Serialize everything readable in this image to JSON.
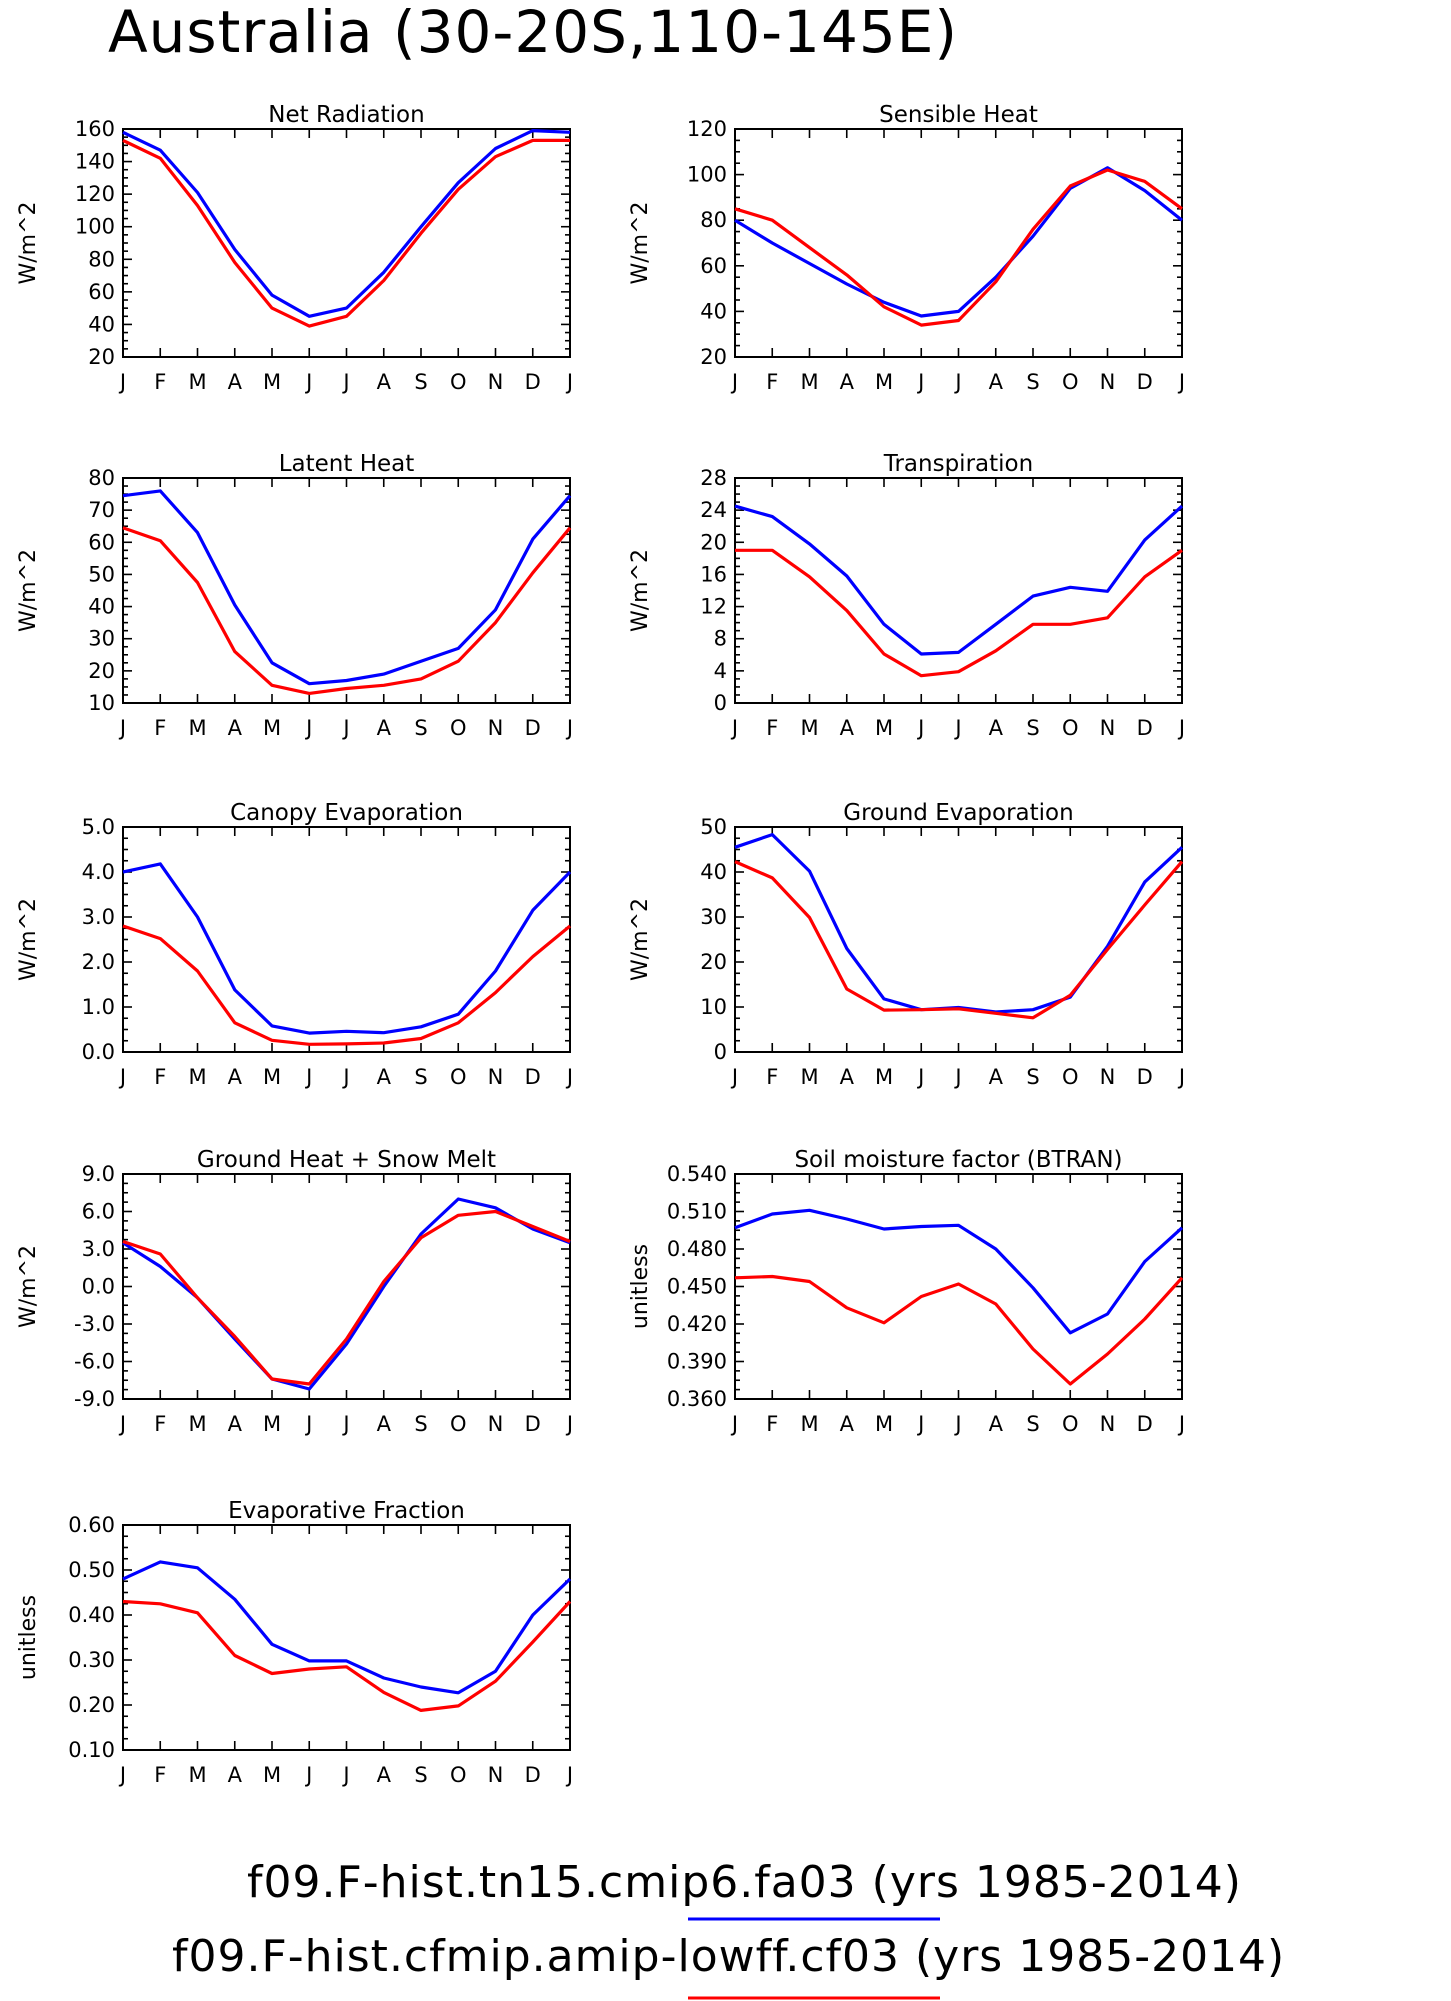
{
  "title": "Australia (30-20S,110-145E)",
  "months": [
    "J",
    "F",
    "M",
    "A",
    "M",
    "J",
    "J",
    "A",
    "S",
    "O",
    "N",
    "D",
    "J"
  ],
  "colors": {
    "case1": "#0000ff",
    "case2": "#ff0000"
  },
  "legend": [
    {
      "label": "f09.F-hist.tn15.cmip6.fa03 (yrs 1985-2014)",
      "color": "#0000ff"
    },
    {
      "label": "f09.F-hist.cfmip.amip-lowff.cf03 (yrs 1985-2014)",
      "color": "#ff0000"
    }
  ],
  "chart_data": [
    {
      "type": "line",
      "title": "Net Radiation",
      "ylabel": "W/m^2",
      "ylim": [
        20,
        160
      ],
      "yticks": [
        "20",
        "40",
        "60",
        "80",
        "100",
        "120",
        "140",
        "160"
      ],
      "series": [
        {
          "values": [
            158,
            147,
            121,
            86,
            58,
            45,
            50,
            72,
            100,
            127,
            148,
            159,
            158
          ]
        },
        {
          "values": [
            153,
            142,
            113,
            78,
            50,
            39,
            45,
            67,
            96,
            123,
            143,
            153,
            153
          ]
        }
      ]
    },
    {
      "type": "line",
      "title": "Sensible Heat",
      "ylabel": "W/m^2",
      "ylim": [
        20,
        120
      ],
      "yticks": [
        "20",
        "40",
        "60",
        "80",
        "100",
        "120"
      ],
      "series": [
        {
          "values": [
            80,
            70,
            61,
            52,
            44,
            38,
            40,
            55,
            73,
            94,
            103,
            93,
            80
          ]
        },
        {
          "values": [
            85,
            80,
            68,
            56,
            42,
            34,
            36,
            53,
            76,
            95,
            102,
            97,
            85
          ]
        }
      ]
    },
    {
      "type": "line",
      "title": "Latent Heat",
      "ylabel": "W/m^2",
      "ylim": [
        10,
        80
      ],
      "yticks": [
        "10",
        "20",
        "30",
        "40",
        "50",
        "60",
        "70",
        "80"
      ],
      "series": [
        {
          "values": [
            74.5,
            76,
            63,
            40.5,
            22.5,
            16,
            17,
            19,
            23,
            27,
            39,
            61,
            74.5
          ]
        },
        {
          "values": [
            64.5,
            60.5,
            47.5,
            26,
            15.5,
            13,
            14.5,
            15.5,
            17.5,
            23,
            35,
            50.5,
            64.5
          ]
        }
      ]
    },
    {
      "type": "line",
      "title": "Transpiration",
      "ylabel": "W/m^2",
      "ylim": [
        0,
        28
      ],
      "yticks": [
        "0",
        "4",
        "8",
        "12",
        "16",
        "20",
        "24",
        "28"
      ],
      "series": [
        {
          "values": [
            24.5,
            23.2,
            19.8,
            15.8,
            9.8,
            6.1,
            6.3,
            9.8,
            13.3,
            14.4,
            13.9,
            20.3,
            24.5
          ]
        },
        {
          "values": [
            19,
            19,
            15.7,
            11.5,
            6.1,
            3.4,
            3.9,
            6.5,
            9.8,
            9.8,
            10.6,
            15.7,
            19
          ]
        }
      ]
    },
    {
      "type": "line",
      "title": "Canopy Evaporation",
      "ylabel": "W/m^2",
      "ylim": [
        0,
        5
      ],
      "yticks": [
        "0.0",
        "1.0",
        "2.0",
        "3.0",
        "4.0",
        "5.0"
      ],
      "series": [
        {
          "values": [
            4.0,
            4.18,
            3.0,
            1.38,
            0.58,
            0.42,
            0.46,
            0.43,
            0.56,
            0.84,
            1.8,
            3.15,
            4.0
          ]
        },
        {
          "values": [
            2.8,
            2.52,
            1.8,
            0.65,
            0.26,
            0.17,
            0.18,
            0.2,
            0.3,
            0.65,
            1.32,
            2.12,
            2.8
          ]
        }
      ]
    },
    {
      "type": "line",
      "title": "Ground Evaporation",
      "ylabel": "W/m^2",
      "ylim": [
        0,
        50
      ],
      "yticks": [
        "0",
        "10",
        "20",
        "30",
        "40",
        "50"
      ],
      "series": [
        {
          "values": [
            45.5,
            48.3,
            40.2,
            23,
            11.8,
            9.4,
            9.9,
            8.9,
            9.4,
            12.2,
            23.5,
            37.8,
            45.5
          ]
        },
        {
          "values": [
            42.3,
            38.7,
            29.9,
            14,
            9.3,
            9.4,
            9.6,
            8.6,
            7.6,
            12.6,
            22.8,
            32.7,
            42.3
          ]
        }
      ]
    },
    {
      "type": "line",
      "title": "Ground Heat + Snow Melt",
      "ylabel": "W/m^2",
      "ylim": [
        -9,
        9
      ],
      "yticks": [
        "-9.0",
        "-6.0",
        "-3.0",
        "0.0",
        "3.0",
        "6.0",
        "9.0"
      ],
      "series": [
        {
          "values": [
            3.5,
            1.6,
            -0.9,
            -4.2,
            -7.4,
            -8.2,
            -4.6,
            0.0,
            4.2,
            7.0,
            6.3,
            4.6,
            3.5
          ]
        },
        {
          "values": [
            3.6,
            2.6,
            -0.9,
            -4.0,
            -7.4,
            -7.8,
            -4.2,
            0.4,
            3.9,
            5.7,
            6.0,
            4.8,
            3.6
          ]
        }
      ]
    },
    {
      "type": "line",
      "title": "Soil moisture factor (BTRAN)",
      "ylabel": "unitless",
      "ylim": [
        0.36,
        0.54
      ],
      "yticks": [
        "0.360",
        "0.390",
        "0.420",
        "0.450",
        "0.480",
        "0.510",
        "0.540"
      ],
      "series": [
        {
          "values": [
            0.497,
            0.508,
            0.511,
            0.504,
            0.496,
            0.498,
            0.499,
            0.48,
            0.449,
            0.413,
            0.428,
            0.47,
            0.497
          ]
        },
        {
          "values": [
            0.457,
            0.458,
            0.454,
            0.433,
            0.421,
            0.442,
            0.452,
            0.436,
            0.4,
            0.372,
            0.396,
            0.424,
            0.457
          ]
        }
      ]
    },
    {
      "type": "line",
      "title": "Evaporative Fraction",
      "ylabel": "unitless",
      "ylim": [
        0.1,
        0.6
      ],
      "yticks": [
        "0.10",
        "0.20",
        "0.30",
        "0.40",
        "0.50",
        "0.60"
      ],
      "series": [
        {
          "values": [
            0.48,
            0.518,
            0.505,
            0.435,
            0.335,
            0.298,
            0.298,
            0.26,
            0.24,
            0.227,
            0.275,
            0.4,
            0.48
          ]
        },
        {
          "values": [
            0.43,
            0.425,
            0.405,
            0.31,
            0.27,
            0.28,
            0.285,
            0.228,
            0.188,
            0.198,
            0.253,
            0.34,
            0.43
          ]
        }
      ]
    }
  ]
}
